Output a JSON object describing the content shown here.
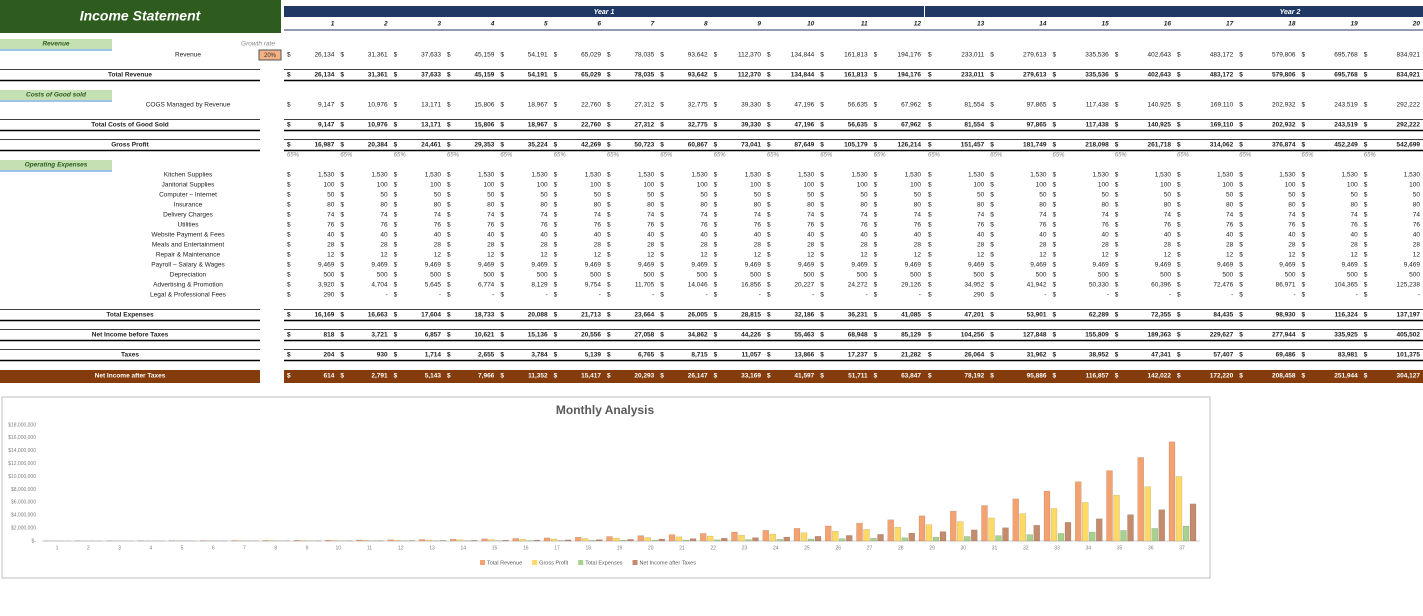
{
  "header": {
    "title": "Income Statement",
    "growth_label": "Growth rate",
    "growth_value": "20%",
    "years": [
      "Year 1",
      "Year 2"
    ],
    "months": [
      1,
      2,
      3,
      4,
      5,
      6,
      7,
      8,
      9,
      10,
      11,
      12,
      13,
      14,
      15,
      16,
      17,
      18,
      19,
      20
    ]
  },
  "table": {
    "currency": "$",
    "rows": [
      {
        "label": "Revenue"
      },
      {
        "label": "Revenue",
        "values": [
          "26,134",
          "31,361",
          "37,633",
          "45,159",
          "54,191",
          "65,029",
          "78,035",
          "93,642",
          "112,370",
          "134,844",
          "161,813",
          "194,176",
          "233,011",
          "279,613",
          "335,536",
          "402,643",
          "483,172",
          "579,806",
          "695,768",
          "834,921"
        ]
      },
      {
        "label": "Total Revenue",
        "values": [
          "26,134",
          "31,361",
          "37,633",
          "45,159",
          "54,191",
          "65,029",
          "78,035",
          "93,642",
          "112,370",
          "134,844",
          "161,813",
          "194,176",
          "233,011",
          "279,613",
          "335,536",
          "402,643",
          "483,172",
          "579,806",
          "695,768",
          "834,921"
        ]
      },
      {
        "label": "Costs of Good sold"
      },
      {
        "label": "COGS Managed by Revenue",
        "values": [
          "9,147",
          "10,976",
          "13,171",
          "15,806",
          "18,967",
          "22,760",
          "27,312",
          "32,775",
          "39,330",
          "47,196",
          "56,635",
          "67,962",
          "81,554",
          "97,865",
          "117,438",
          "140,925",
          "169,110",
          "202,932",
          "243,519",
          "292,222"
        ]
      },
      {
        "label": "Total Costs of Good Sold",
        "values": [
          "9,147",
          "10,976",
          "13,171",
          "15,806",
          "18,967",
          "22,760",
          "27,312",
          "32,775",
          "39,330",
          "47,196",
          "56,635",
          "67,962",
          "81,554",
          "97,865",
          "117,438",
          "140,925",
          "169,110",
          "202,932",
          "243,519",
          "292,222"
        ]
      },
      {
        "label": "Gross Profit",
        "values": [
          "16,987",
          "20,384",
          "24,461",
          "29,353",
          "35,224",
          "42,269",
          "50,723",
          "60,867",
          "73,041",
          "87,649",
          "105,179",
          "126,214",
          "151,457",
          "181,749",
          "218,098",
          "261,718",
          "314,062",
          "376,874",
          "452,249",
          "542,699"
        ]
      },
      {
        "values": [
          "65%",
          "65%",
          "65%",
          "65%",
          "65%",
          "65%",
          "65%",
          "65%",
          "65%",
          "65%",
          "65%",
          "65%",
          "65%",
          "65%",
          "65%",
          "65%",
          "65%",
          "65%",
          "65%",
          "65%"
        ]
      },
      {
        "label": "Operating Expenses"
      },
      {
        "label": "Kitchen Supplies",
        "values": [
          "1,530",
          "1,530",
          "1,530",
          "1,530",
          "1,530",
          "1,530",
          "1,530",
          "1,530",
          "1,530",
          "1,530",
          "1,530",
          "1,530",
          "1,530",
          "1,530",
          "1,530",
          "1,530",
          "1,530",
          "1,530",
          "1,530",
          "1,530"
        ]
      },
      {
        "label": "Janitorial Supplies",
        "values": [
          "100",
          "100",
          "100",
          "100",
          "100",
          "100",
          "100",
          "100",
          "100",
          "100",
          "100",
          "100",
          "100",
          "100",
          "100",
          "100",
          "100",
          "100",
          "100",
          "100"
        ]
      },
      {
        "label": "Computer – Internet",
        "values": [
          "50",
          "50",
          "50",
          "50",
          "50",
          "50",
          "50",
          "50",
          "50",
          "50",
          "50",
          "50",
          "50",
          "50",
          "50",
          "50",
          "50",
          "50",
          "50",
          "50"
        ]
      },
      {
        "label": "Insurance",
        "values": [
          "80",
          "80",
          "80",
          "80",
          "80",
          "80",
          "80",
          "80",
          "80",
          "80",
          "80",
          "80",
          "80",
          "80",
          "80",
          "80",
          "80",
          "80",
          "80",
          "80"
        ]
      },
      {
        "label": "Delivery Charges",
        "values": [
          "74",
          "74",
          "74",
          "74",
          "74",
          "74",
          "74",
          "74",
          "74",
          "74",
          "74",
          "74",
          "74",
          "74",
          "74",
          "74",
          "74",
          "74",
          "74",
          "74"
        ]
      },
      {
        "label": "Utilities",
        "values": [
          "76",
          "76",
          "76",
          "76",
          "76",
          "76",
          "76",
          "76",
          "76",
          "76",
          "76",
          "76",
          "76",
          "76",
          "76",
          "76",
          "76",
          "76",
          "76",
          "76"
        ]
      },
      {
        "label": "Website Payment & Fees",
        "values": [
          "40",
          "40",
          "40",
          "40",
          "40",
          "40",
          "40",
          "40",
          "40",
          "40",
          "40",
          "40",
          "40",
          "40",
          "40",
          "40",
          "40",
          "40",
          "40",
          "40"
        ]
      },
      {
        "label": "Meals and Entertainment",
        "values": [
          "28",
          "28",
          "28",
          "28",
          "28",
          "28",
          "28",
          "28",
          "28",
          "28",
          "28",
          "28",
          "28",
          "28",
          "28",
          "28",
          "28",
          "28",
          "28",
          "28"
        ]
      },
      {
        "label": "Repair & Maintenance",
        "values": [
          "12",
          "12",
          "12",
          "12",
          "12",
          "12",
          "12",
          "12",
          "12",
          "12",
          "12",
          "12",
          "12",
          "12",
          "12",
          "12",
          "12",
          "12",
          "12",
          "12"
        ]
      },
      {
        "label": "Payroll – Salary & Wages",
        "values": [
          "9,469",
          "9,469",
          "9,469",
          "9,469",
          "9,469",
          "9,469",
          "9,469",
          "9,469",
          "9,469",
          "9,469",
          "9,469",
          "9,469",
          "9,469",
          "9,469",
          "9,469",
          "9,469",
          "9,469",
          "9,469",
          "9,469",
          "9,469"
        ]
      },
      {
        "label": "Depreciation",
        "values": [
          "500",
          "500",
          "500",
          "500",
          "500",
          "500",
          "500",
          "500",
          "500",
          "500",
          "500",
          "500",
          "500",
          "500",
          "500",
          "500",
          "500",
          "500",
          "500",
          "500"
        ]
      },
      {
        "label": "Advertising & Promotion",
        "values": [
          "3,920",
          "4,704",
          "5,645",
          "6,774",
          "8,129",
          "9,754",
          "11,705",
          "14,046",
          "16,856",
          "20,227",
          "24,272",
          "29,126",
          "34,952",
          "41,942",
          "50,330",
          "60,396",
          "72,476",
          "86,971",
          "104,365",
          "125,238"
        ]
      },
      {
        "label": "Legal & Professional Fees",
        "values": [
          "290",
          "-",
          "-",
          "-",
          "-",
          "-",
          "-",
          "-",
          "-",
          "-",
          "-",
          "-",
          "290",
          "-",
          "-",
          "-",
          "-",
          "-",
          "-",
          "-"
        ]
      },
      {
        "label": "Total Expenses",
        "values": [
          "16,169",
          "16,663",
          "17,604",
          "18,733",
          "20,088",
          "21,713",
          "23,664",
          "26,005",
          "28,815",
          "32,186",
          "36,231",
          "41,085",
          "47,201",
          "53,901",
          "62,289",
          "72,355",
          "84,435",
          "98,930",
          "116,324",
          "137,197"
        ]
      },
      {
        "label": "Net Income before Taxes",
        "values": [
          "818",
          "3,721",
          "6,857",
          "10,621",
          "15,136",
          "20,556",
          "27,058",
          "34,862",
          "44,226",
          "55,463",
          "68,948",
          "85,129",
          "104,256",
          "127,848",
          "155,809",
          "189,363",
          "229,627",
          "277,944",
          "335,925",
          "405,502"
        ]
      },
      {
        "label": "Taxes",
        "values": [
          "204",
          "930",
          "1,714",
          "2,655",
          "3,784",
          "5,139",
          "6,765",
          "8,715",
          "11,057",
          "13,866",
          "17,237",
          "21,282",
          "26,064",
          "31,962",
          "38,952",
          "47,341",
          "57,407",
          "69,486",
          "83,981",
          "101,375"
        ]
      },
      {
        "label": "Net Income after Taxes",
        "values": [
          "614",
          "2,791",
          "5,143",
          "7,966",
          "11,352",
          "15,417",
          "20,293",
          "26,147",
          "33,169",
          "41,597",
          "51,711",
          "63,847",
          "78,192",
          "95,886",
          "116,857",
          "142,022",
          "172,220",
          "208,458",
          "251,944",
          "304,127"
        ]
      }
    ]
  },
  "chart_data": {
    "type": "bar",
    "title": "Monthly Analysis",
    "categories": [
      1,
      2,
      3,
      4,
      5,
      6,
      7,
      8,
      9,
      10,
      11,
      12,
      13,
      14,
      15,
      16,
      17,
      18,
      19,
      20,
      21,
      22,
      23,
      24,
      25,
      26,
      27,
      28,
      29,
      30,
      31,
      32,
      33,
      34,
      35,
      36,
      37
    ],
    "ylim": [
      0,
      18000000
    ],
    "yticks": [
      {
        "value": 0,
        "label": "$-"
      },
      {
        "value": 2000000,
        "label": "$2,000,000"
      },
      {
        "value": 4000000,
        "label": "$4,000,000"
      },
      {
        "value": 6000000,
        "label": "$6,000,000"
      },
      {
        "value": 8000000,
        "label": "$8,000,000"
      },
      {
        "value": 10000000,
        "label": "$10,000,000"
      },
      {
        "value": 12000000,
        "label": "$12,000,000"
      },
      {
        "value": 14000000,
        "label": "$14,000,000"
      },
      {
        "value": 16000000,
        "label": "$16,000,000"
      },
      {
        "value": 18000000,
        "label": "$18,000,000"
      }
    ],
    "grid": false,
    "legend": "bottom",
    "series": [
      {
        "name": "Total Revenue",
        "color": "#f4a270",
        "values": [
          26134,
          31361,
          37633,
          45159,
          54191,
          65029,
          78035,
          93642,
          112370,
          134844,
          161813,
          194176,
          233011,
          279613,
          335536,
          402643,
          483172,
          579806,
          695768,
          834921,
          991000,
          1176000,
          1396000,
          1657000,
          1967000,
          2335000,
          2772000,
          3290000,
          3905000,
          4636000,
          5503000,
          6532000,
          7753000,
          9203000,
          10924000,
          12967000,
          15392000
        ]
      },
      {
        "name": "Gross Profit",
        "color": "#ffd966",
        "values": [
          16987,
          20384,
          24461,
          29353,
          35224,
          42269,
          50723,
          60867,
          73041,
          87649,
          105179,
          126214,
          151457,
          181749,
          218098,
          261718,
          314062,
          376874,
          452249,
          542699,
          644000,
          764000,
          907000,
          1077000,
          1279000,
          1518000,
          1802000,
          2139000,
          2538000,
          3013000,
          3577000,
          4246000,
          5039000,
          5982000,
          7101000,
          8429000,
          10005000
        ]
      },
      {
        "name": "Total Expenses",
        "color": "#a9d18e",
        "values": [
          16169,
          16663,
          17604,
          18733,
          20088,
          21713,
          23664,
          26005,
          28815,
          32186,
          36231,
          41085,
          47201,
          53901,
          62289,
          72355,
          84435,
          98930,
          116324,
          137197,
          161000,
          188000,
          221000,
          261000,
          307000,
          362000,
          428000,
          506000,
          598000,
          707000,
          837000,
          992000,
          1175000,
          1392000,
          1651000,
          1957000,
          2321000
        ]
      },
      {
        "name": "Net Income after Taxes",
        "color": "#c48b6c",
        "values": [
          614,
          2791,
          5143,
          7966,
          11352,
          15417,
          20293,
          26147,
          33169,
          41597,
          51711,
          63847,
          78192,
          95886,
          116857,
          142022,
          172220,
          208458,
          251944,
          304127,
          362000,
          432000,
          515000,
          612000,
          729000,
          867000,
          1031000,
          1225000,
          1455000,
          1730000,
          2055000,
          2441000,
          2898000,
          3443000,
          4088000,
          4854000,
          5763000
        ]
      }
    ]
  }
}
